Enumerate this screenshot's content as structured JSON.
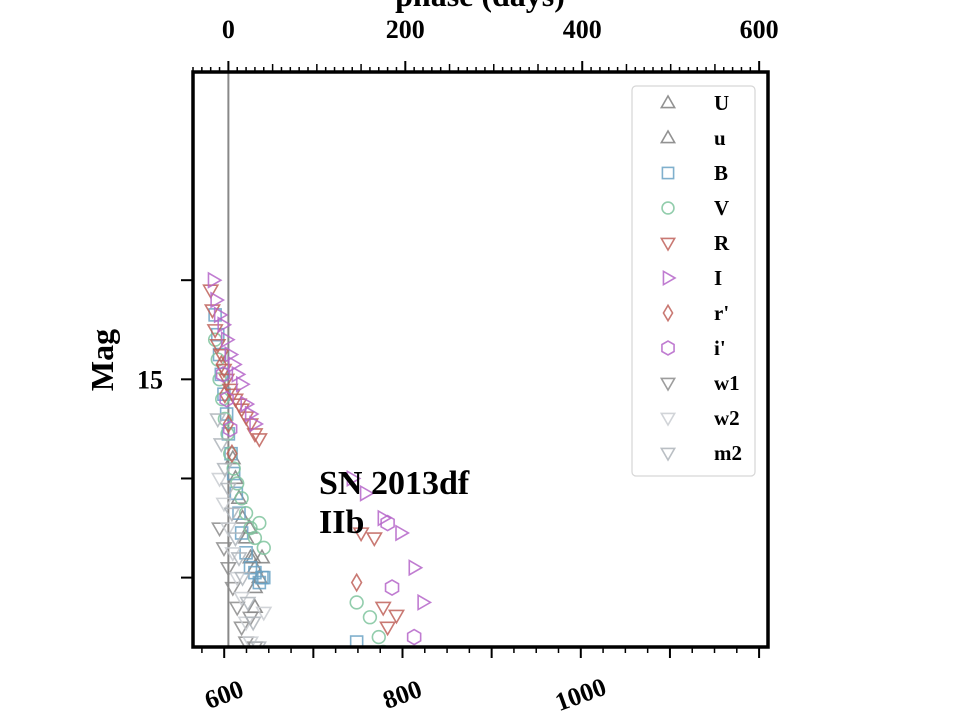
{
  "chart_data": {
    "type": "scatter",
    "xlabel_top": "phase (days)",
    "xlabel_bottom": "",
    "ylabel": "Mag",
    "annotation": [
      "SN 2013df",
      "IIb"
    ],
    "x_top_range": [
      -40,
      610
    ],
    "x_top_ticks": [
      0,
      200,
      400,
      600
    ],
    "x_bottom_range": [
      565,
      1210
    ],
    "x_bottom_ticks": [
      600,
      800,
      1000
    ],
    "y_range": [
      11.9,
      17.7
    ],
    "y_inverted": true,
    "y_tick_labels": [
      {
        "value": 15,
        "label": "15"
      }
    ],
    "y_major_ticks": [
      14,
      15,
      16,
      17,
      18
    ],
    "vertical_line_at_phase": 0,
    "legend_position": "top-right",
    "series": [
      {
        "name": "U",
        "marker": "triangle-up",
        "color": "#7f7f7f",
        "points": [
          [
            24,
            16.5
          ],
          [
            30,
            17.1
          ],
          [
            30,
            17.3
          ],
          [
            28,
            16.8
          ]
        ]
      },
      {
        "name": "u",
        "marker": "triangle-up",
        "color": "#7f7f7f",
        "points": [
          [
            5,
            15.8
          ],
          [
            8,
            16.0
          ],
          [
            12,
            16.2
          ],
          [
            16,
            16.4
          ],
          [
            20,
            16.6
          ],
          [
            25,
            16.8
          ],
          [
            30,
            16.9
          ],
          [
            35,
            17.0
          ],
          [
            38,
            16.8
          ]
        ]
      },
      {
        "name": "B",
        "marker": "square",
        "color": "#6aa2c4",
        "points": [
          [
            -15,
            14.35
          ],
          [
            -12,
            14.55
          ],
          [
            -10,
            14.75
          ],
          [
            -8,
            14.95
          ],
          [
            -5,
            15.15
          ],
          [
            -2,
            15.35
          ],
          [
            0,
            15.55
          ],
          [
            3,
            15.75
          ],
          [
            6,
            15.95
          ],
          [
            9,
            16.15
          ],
          [
            12,
            16.35
          ],
          [
            15,
            16.55
          ],
          [
            20,
            16.75
          ],
          [
            25,
            16.9
          ],
          [
            30,
            16.95
          ],
          [
            35,
            17.05
          ],
          [
            38,
            17.0
          ],
          [
            40,
            17.0
          ],
          [
            145,
            17.65
          ]
        ]
      },
      {
        "name": "V",
        "marker": "circle",
        "color": "#7fc49d",
        "points": [
          [
            -15,
            14.6
          ],
          [
            -12,
            14.8
          ],
          [
            -10,
            15.0
          ],
          [
            -7,
            15.2
          ],
          [
            -4,
            15.4
          ],
          [
            -1,
            15.55
          ],
          [
            2,
            15.75
          ],
          [
            6,
            15.9
          ],
          [
            10,
            16.05
          ],
          [
            15,
            16.2
          ],
          [
            20,
            16.35
          ],
          [
            25,
            16.5
          ],
          [
            30,
            16.6
          ],
          [
            35,
            16.45
          ],
          [
            40,
            16.7
          ],
          [
            145,
            17.25
          ],
          [
            160,
            17.4
          ],
          [
            170,
            17.6
          ],
          [
            175,
            17.75
          ],
          [
            180,
            17.85
          ]
        ]
      },
      {
        "name": "R",
        "marker": "triangle-down",
        "color": "#c0625a",
        "points": [
          [
            -20,
            14.1
          ],
          [
            -18,
            14.3
          ],
          [
            -15,
            14.5
          ],
          [
            -12,
            14.65
          ],
          [
            -8,
            14.75
          ],
          [
            -5,
            14.9
          ],
          [
            -2,
            15.0
          ],
          [
            2,
            15.1
          ],
          [
            5,
            15.15
          ],
          [
            8,
            15.2
          ],
          [
            12,
            15.25
          ],
          [
            15,
            15.3
          ],
          [
            20,
            15.38
          ],
          [
            25,
            15.45
          ],
          [
            30,
            15.55
          ],
          [
            35,
            15.6
          ],
          [
            150,
            16.55
          ],
          [
            165,
            16.6
          ],
          [
            175,
            17.3
          ],
          [
            180,
            17.5
          ],
          [
            190,
            17.38
          ]
        ]
      },
      {
        "name": "I",
        "marker": "triangle-right",
        "color": "#b565c9",
        "points": [
          [
            -17,
            14.0
          ],
          [
            -14,
            14.2
          ],
          [
            -10,
            14.35
          ],
          [
            -6,
            14.45
          ],
          [
            -2,
            14.6
          ],
          [
            2,
            14.75
          ],
          [
            6,
            14.85
          ],
          [
            10,
            14.95
          ],
          [
            15,
            15.05
          ],
          [
            20,
            15.25
          ],
          [
            25,
            15.35
          ],
          [
            30,
            15.45
          ],
          [
            140,
            16.0
          ],
          [
            155,
            16.15
          ],
          [
            175,
            16.4
          ],
          [
            195,
            16.55
          ],
          [
            210,
            16.9
          ],
          [
            220,
            17.25
          ]
        ]
      },
      {
        "name": "r'",
        "marker": "diamond",
        "color": "#c0625a",
        "points": [
          [
            -8,
            14.85
          ],
          [
            -4,
            15.15
          ],
          [
            0,
            15.45
          ],
          [
            4,
            15.75
          ],
          [
            145,
            17.05
          ]
        ]
      },
      {
        "name": "i'",
        "marker": "hexagon",
        "color": "#b565c9",
        "points": [
          [
            -6,
            14.95
          ],
          [
            -2,
            15.2
          ],
          [
            2,
            15.5
          ],
          [
            180,
            16.45
          ],
          [
            185,
            17.1
          ],
          [
            210,
            17.6
          ],
          [
            225,
            17.85
          ]
        ]
      },
      {
        "name": "w1",
        "marker": "triangle-down",
        "color": "#8c8c8c",
        "points": [
          [
            -10,
            16.5
          ],
          [
            -5,
            16.7
          ],
          [
            0,
            16.9
          ],
          [
            5,
            17.1
          ],
          [
            10,
            17.3
          ],
          [
            15,
            17.5
          ],
          [
            20,
            17.65
          ],
          [
            25,
            17.4
          ],
          [
            30,
            17.7
          ],
          [
            35,
            17.85
          ]
        ]
      },
      {
        "name": "w2",
        "marker": "triangle-down",
        "color": "#c9cdd1",
        "points": [
          [
            -10,
            16.0
          ],
          [
            -5,
            16.25
          ],
          [
            0,
            16.5
          ],
          [
            5,
            16.75
          ],
          [
            10,
            17.0
          ],
          [
            15,
            17.2
          ],
          [
            20,
            17.45
          ],
          [
            25,
            17.65
          ],
          [
            30,
            17.85
          ],
          [
            40,
            17.35
          ]
        ]
      },
      {
        "name": "m2",
        "marker": "triangle-down",
        "color": "#aeb4ba",
        "points": [
          [
            -12,
            15.4
          ],
          [
            -8,
            15.65
          ],
          [
            -4,
            15.9
          ],
          [
            0,
            16.1
          ],
          [
            4,
            16.35
          ],
          [
            8,
            16.6
          ],
          [
            12,
            16.8
          ],
          [
            16,
            17.0
          ],
          [
            22,
            17.25
          ],
          [
            28,
            17.45
          ],
          [
            34,
            17.7
          ],
          [
            38,
            17.95
          ]
        ]
      }
    ]
  }
}
